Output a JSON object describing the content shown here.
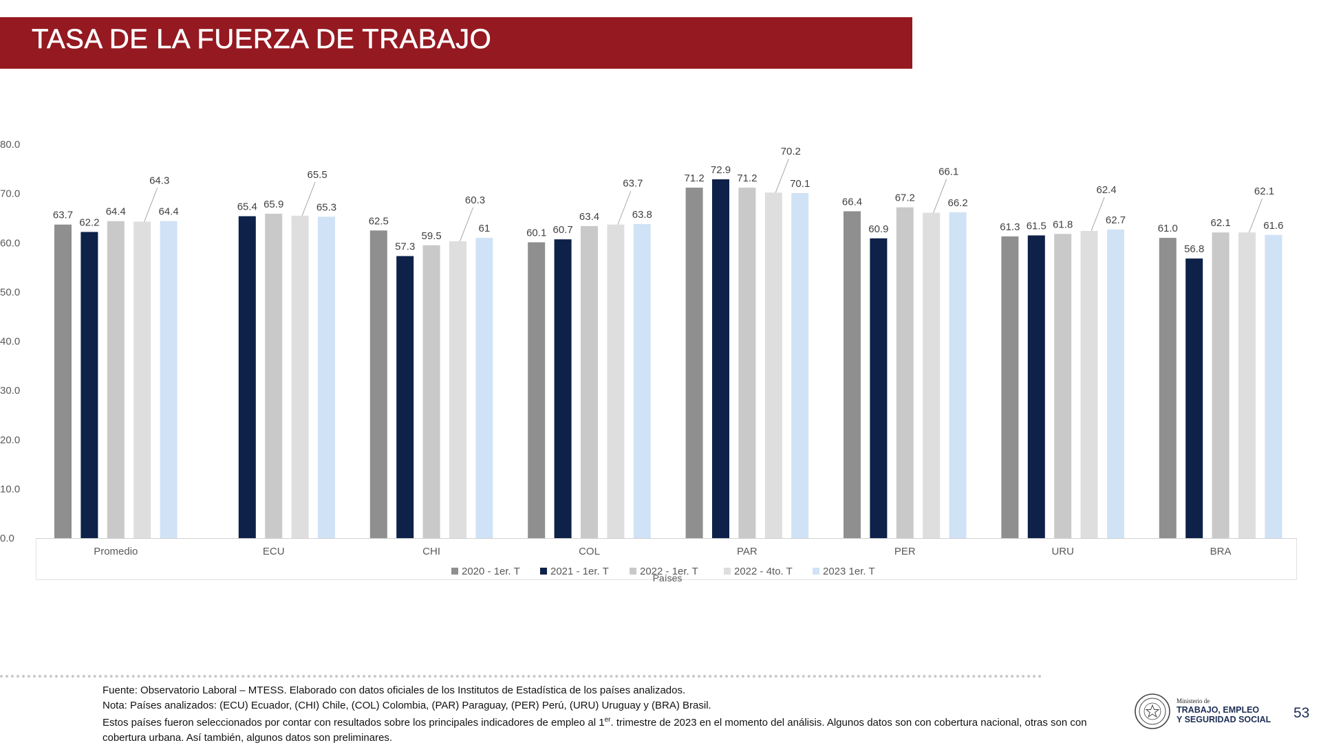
{
  "slide": {
    "title": "TASA DE LA FUERZA DE TRABAJO",
    "page_number": "53",
    "notes": {
      "line1": "Fuente: Observatorio Laboral – MTESS. Elaborado con datos oficiales de los Institutos de Estadística de los países analizados.",
      "line2": "Nota: Países analizados: (ECU) Ecuador, (CHI) Chile, (COL) Colombia, (PAR) Paraguay, (PER)  Perú, (URU) Uruguay y (BRA) Brasil.",
      "line3_pre": "Estos países fueron seleccionados por contar con resultados sobre los principales indicadores de empleo al 1",
      "line3_sup": "er",
      "line3_post": ". trimestre de 2023 en el momento del análisis. Algunos datos son con cobertura nacional, otras son con",
      "line4": "cobertura urbana. Así también, algunos datos son preliminares."
    },
    "logo": {
      "line1": "Ministerio de",
      "line2": "TRABAJO, EMPLEO",
      "line3": "Y SEGURIDAD SOCIAL"
    }
  },
  "colors": {
    "title_bar": "#951921",
    "series": [
      "#8f8f8f",
      "#0d2149",
      "#c9c9c9",
      "#dedede",
      "#d0e2f5"
    ]
  },
  "chart_data": {
    "type": "bar",
    "title": "",
    "xlabel": "Países",
    "ylabel": "",
    "ylim": [
      0,
      80
    ],
    "yticks": [
      "0.0",
      "10.0",
      "20.0",
      "30.0",
      "40.0",
      "50.0",
      "60.0",
      "70.0",
      "80.0"
    ],
    "categories": [
      "Promedio",
      "ECU",
      "CHI",
      "COL",
      "PAR",
      "PER",
      "URU",
      "BRA"
    ],
    "legend_position": "bottom",
    "grid": false,
    "series": [
      {
        "name": "2020 - 1er. T",
        "values": [
          63.7,
          null,
          62.5,
          60.1,
          71.2,
          66.4,
          61.3,
          61.0
        ],
        "labels": [
          "63.7",
          "",
          "62.5",
          "60.1",
          "71.2",
          "66.4",
          "61.3",
          "61.0"
        ]
      },
      {
        "name": "2021 - 1er. T",
        "values": [
          62.2,
          65.4,
          57.3,
          60.7,
          72.9,
          60.9,
          61.5,
          56.8
        ],
        "labels": [
          "62.2",
          "65.4",
          "57.3",
          "60.7",
          "72.9",
          "60.9",
          "61.5",
          "56.8"
        ]
      },
      {
        "name": "2022 - 1er. T",
        "values": [
          64.4,
          65.9,
          59.5,
          63.4,
          71.2,
          67.2,
          61.8,
          62.1
        ],
        "labels": [
          "64.4",
          "65.9",
          "59.5",
          "63.4",
          "71.2",
          "67.2",
          "61.8",
          "62.1"
        ]
      },
      {
        "name": "2022 - 4to. T",
        "values": [
          64.3,
          65.5,
          60.3,
          63.7,
          70.2,
          66.1,
          62.4,
          62.1
        ],
        "labels": [
          "64.3",
          "65.5",
          "60.3",
          "63.7",
          "70.2",
          "66.1",
          "62.4",
          "62.1"
        ]
      },
      {
        "name": "2023 1er. T",
        "values": [
          64.4,
          65.3,
          61,
          63.8,
          70.1,
          66.2,
          62.7,
          61.6
        ],
        "labels": [
          "64.4",
          "65.3",
          "61",
          "63.8",
          "70.1",
          "66.2",
          "62.7",
          "61.6"
        ]
      }
    ]
  }
}
